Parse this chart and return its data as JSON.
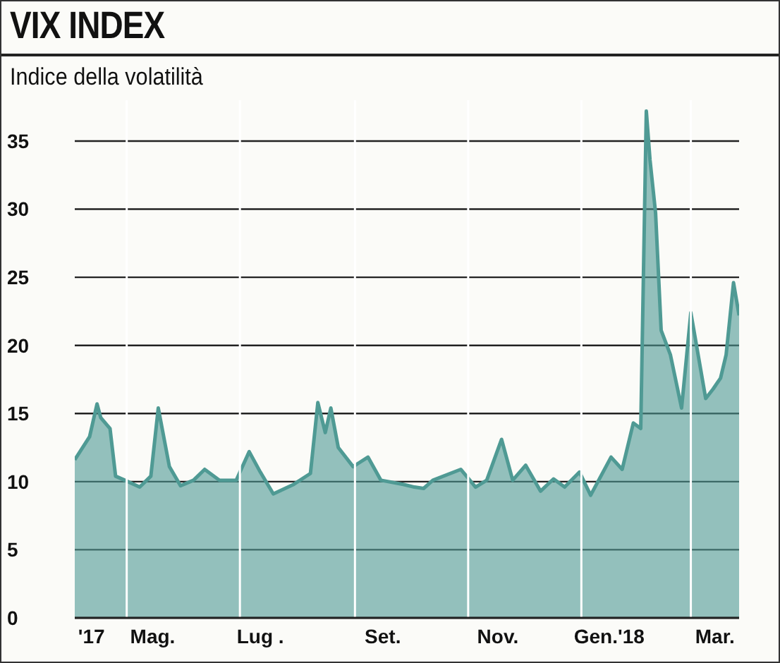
{
  "chart_data": {
    "type": "area",
    "title": "VIX INDEX",
    "subtitle": "Indice della volatilità",
    "x": [
      "2017-04-03",
      "2017-04-11",
      "2017-04-15",
      "2017-04-17",
      "2017-04-22",
      "2017-04-25",
      "2017-04-30",
      "2017-05-08",
      "2017-05-14",
      "2017-05-18",
      "2017-05-24",
      "2017-05-30",
      "2017-06-06",
      "2017-06-12",
      "2017-06-20",
      "2017-06-29",
      "2017-07-06",
      "2017-07-12",
      "2017-07-19",
      "2017-07-30",
      "2017-08-08",
      "2017-08-12",
      "2017-08-16",
      "2017-08-19",
      "2017-08-23",
      "2017-08-31",
      "2017-09-08",
      "2017-09-15",
      "2017-09-27",
      "2017-10-03",
      "2017-10-08",
      "2017-10-13",
      "2017-10-28",
      "2017-11-05",
      "2017-11-11",
      "2017-11-19",
      "2017-11-25",
      "2017-12-02",
      "2017-12-10",
      "2017-12-17",
      "2017-12-23",
      "2017-12-31",
      "2018-01-06",
      "2018-01-17",
      "2018-01-23",
      "2018-01-29",
      "2018-02-02",
      "2018-02-05",
      "2018-02-07",
      "2018-02-10",
      "2018-02-13",
      "2018-02-18",
      "2018-02-24",
      "2018-03-01",
      "2018-03-09",
      "2018-03-13",
      "2018-03-17",
      "2018-03-20",
      "2018-03-24",
      "2018-03-27"
    ],
    "values": [
      11.6,
      13.3,
      15.7,
      14.7,
      13.9,
      10.4,
      10.1,
      9.6,
      10.4,
      15.4,
      11.1,
      9.7,
      10.1,
      10.9,
      10.1,
      10.1,
      12.2,
      10.7,
      9.1,
      9.8,
      10.6,
      15.8,
      13.6,
      15.4,
      12.5,
      11.1,
      11.8,
      10.1,
      9.8,
      9.6,
      9.5,
      10.1,
      10.9,
      9.6,
      10.1,
      13.1,
      10.1,
      11.2,
      9.3,
      10.2,
      9.6,
      10.7,
      9.0,
      11.8,
      10.9,
      14.3,
      13.9,
      37.2,
      33.6,
      29.7,
      21.1,
      19.3,
      15.4,
      22.4,
      16.1,
      16.8,
      17.6,
      19.3,
      24.6,
      22.2
    ],
    "color": "#4f9a94",
    "xlim": [
      "2017-04-03",
      "2018-03-27"
    ],
    "xticks": [
      {
        "value": "2017-04-12",
        "label": "'17"
      },
      {
        "value": "2017-05-01",
        "label": null
      },
      {
        "value": "2017-05-15",
        "label": "Mag."
      },
      {
        "value": "2017-07-01",
        "label": null
      },
      {
        "value": "2017-07-12",
        "label": "Lug ."
      },
      {
        "value": "2017-09-01",
        "label": null
      },
      {
        "value": "2017-09-16",
        "label": "Set."
      },
      {
        "value": "2017-11-01",
        "label": null
      },
      {
        "value": "2017-11-17",
        "label": "Nov."
      },
      {
        "value": "2018-01-01",
        "label": null
      },
      {
        "value": "2018-01-16",
        "label": "Gen.'18"
      },
      {
        "value": "2018-03-01",
        "label": null
      },
      {
        "value": "2018-03-14",
        "label": "Mar."
      }
    ],
    "ylim": [
      0,
      38
    ],
    "yticks": [
      0,
      5,
      10,
      15,
      20,
      25,
      30,
      35
    ],
    "grid": true
  }
}
